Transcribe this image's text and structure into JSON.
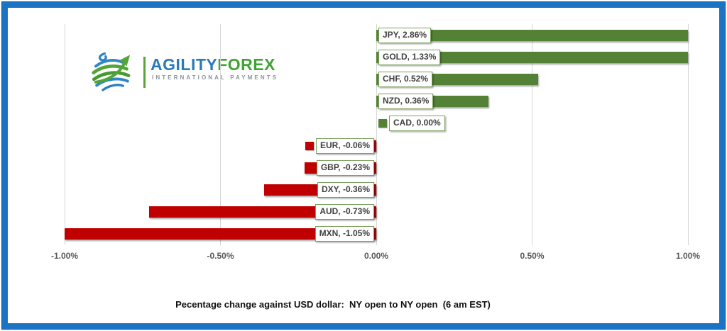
{
  "frame": {
    "border_color": "#1b73c4",
    "background": "#ffffff"
  },
  "logo": {
    "brand_part1": "AGILITY",
    "brand_part2": "FOREX",
    "tagline": "INTERNATIONAL PAYMENTS",
    "icon": "globe-with-arrow-icon",
    "colors": {
      "blue": "#2a79bd",
      "green": "#3fa434",
      "tagline_gray": "#8b939a"
    }
  },
  "chart_data": {
    "type": "bar",
    "orientation": "horizontal",
    "title": "Pecentage change against USD dollar:  NY open to NY open  (6 am EST)",
    "x_axis": {
      "min": -1.0,
      "max": 1.0,
      "ticks": [
        {
          "value": -1.0,
          "label": "-1.00%"
        },
        {
          "value": -0.5,
          "label": "-0.50%"
        },
        {
          "value": 0.0,
          "label": "0.00%"
        },
        {
          "value": 0.5,
          "label": "0.50%"
        },
        {
          "value": 1.0,
          "label": "1.00%"
        }
      ]
    },
    "grid": true,
    "legend_position": "none",
    "bars_clipped_at_axis_limits": [
      "JPY",
      "GOLD",
      "MXN"
    ],
    "series": [
      {
        "name": "JPY",
        "value": 2.86,
        "label": "JPY, 2.86%",
        "color": "#538135"
      },
      {
        "name": "GOLD",
        "value": 1.33,
        "label": "GOLD, 1.33%",
        "color": "#538135"
      },
      {
        "name": "CHF",
        "value": 0.52,
        "label": "CHF, 0.52%",
        "color": "#538135"
      },
      {
        "name": "NZD",
        "value": 0.36,
        "label": "NZD, 0.36%",
        "color": "#538135"
      },
      {
        "name": "CAD",
        "value": 0.0,
        "label": "CAD, 0.00%",
        "color": "#538135",
        "show_key": true
      },
      {
        "name": "EUR",
        "value": -0.06,
        "label": "EUR, -0.06%",
        "color": "#c00000",
        "show_key": true
      },
      {
        "name": "GBP",
        "value": -0.23,
        "label": "GBP, -0.23%",
        "color": "#c00000"
      },
      {
        "name": "DXY",
        "value": -0.36,
        "label": "DXY, -0.36%",
        "color": "#c00000"
      },
      {
        "name": "AUD",
        "value": -0.73,
        "label": "AUD, -0.73%",
        "color": "#c00000"
      },
      {
        "name": "MXN",
        "value": -1.05,
        "label": "MXN, -1.05%",
        "color": "#c00000"
      }
    ],
    "label_style": {
      "background": "#ffffff",
      "border_color": "#7da25f",
      "text_color": "#404040"
    }
  }
}
